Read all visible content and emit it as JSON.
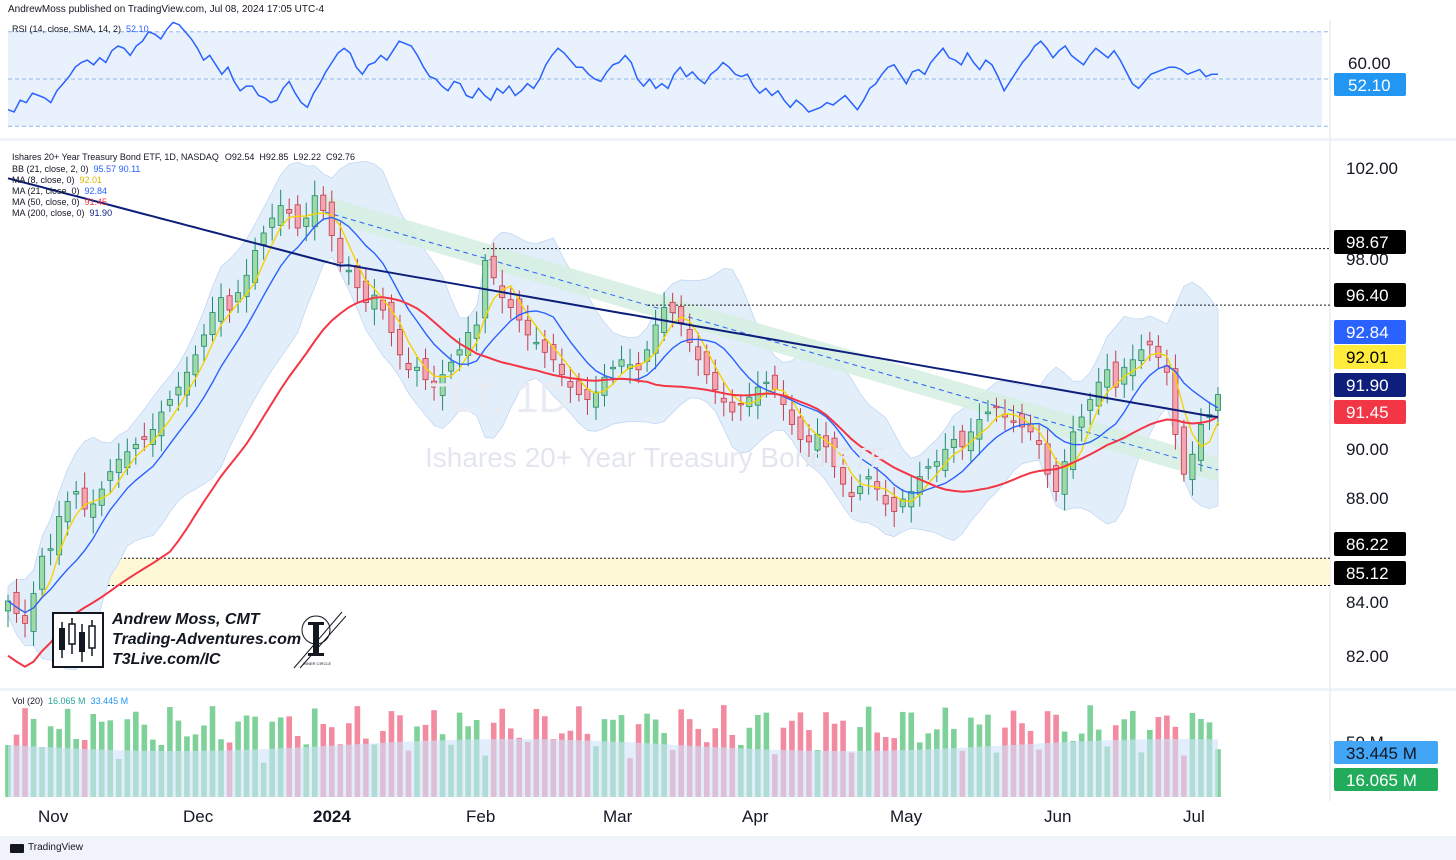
{
  "header": {
    "published_text": "AndrewMoss published on TradingView.com, Jul 08, 2024 17:05 UTC-4"
  },
  "footer": {
    "brand": "TradingView"
  },
  "rsi": {
    "legend": "RSI (14, close, SMA, 14, 2)",
    "legend_value": "52.10",
    "level_label": "60.00",
    "current_tag": "52.10",
    "current": 52.1,
    "upper_band": 70,
    "lower_band": 30,
    "scale": [
      25,
      75
    ],
    "values": [
      37,
      36,
      41,
      40,
      44,
      43,
      42,
      40,
      45,
      48,
      51,
      55,
      57,
      58,
      56,
      59,
      57,
      62,
      64,
      63,
      60,
      64,
      66,
      70,
      69,
      67,
      71,
      74,
      73,
      70,
      67,
      63,
      58,
      60,
      56,
      52,
      55,
      49,
      45,
      47,
      47,
      43,
      42,
      40,
      41,
      46,
      49,
      44,
      40,
      38,
      44,
      48,
      53,
      57,
      61,
      63,
      61,
      55,
      52,
      56,
      57,
      60,
      58,
      62,
      66,
      65,
      64,
      60,
      55,
      51,
      50,
      47,
      45,
      49,
      48,
      43,
      42,
      46,
      43,
      41,
      46,
      44,
      47,
      43,
      45,
      48,
      46,
      50,
      56,
      60,
      63,
      61,
      58,
      55,
      55,
      52,
      50,
      49,
      53,
      56,
      57,
      60,
      57,
      50,
      47,
      50,
      46,
      48,
      46,
      52,
      55,
      51,
      53,
      50,
      48,
      52,
      54,
      57,
      55,
      52,
      51,
      52,
      47,
      44,
      46,
      43,
      45,
      41,
      38,
      41,
      39,
      36,
      37,
      38,
      40,
      39,
      41,
      43,
      40,
      37,
      41,
      46,
      48,
      52,
      55,
      56,
      52,
      48,
      53,
      54,
      52,
      57,
      60,
      63,
      59,
      58,
      56,
      61,
      57,
      54,
      58,
      56,
      51,
      45,
      49,
      53,
      57,
      60,
      64,
      66,
      63,
      59,
      62,
      64,
      60,
      58,
      56,
      60,
      63,
      61,
      59,
      62,
      58,
      53,
      48,
      46,
      49,
      52,
      53,
      54,
      55,
      55,
      54,
      52,
      53,
      54,
      51,
      52,
      52
    ],
    "tail": [
      62,
      63,
      61,
      57,
      55,
      58,
      52,
      48,
      46,
      49,
      51,
      53,
      52
    ]
  },
  "price_panel": {
    "legend_title": "Ishares 20+ Year Treasury Bond ETF, 1D, NASDAQ",
    "ohlc": {
      "o": "O92.54",
      "h": "H92.85",
      "l": "L92.22",
      "c": "C92.76"
    },
    "indicators": [
      {
        "label": "BB (21, close, 2, 0)",
        "values": "95.57  90.11",
        "color": "#2962ff"
      },
      {
        "label": "MA (8, close, 0)",
        "values": "92.01",
        "color": "#f5d300"
      },
      {
        "label": "MA (21, close, 0)",
        "values": "92.84",
        "color": "#2962ff"
      },
      {
        "label": "MA (50, close, 0)",
        "values": "91.45",
        "color": "#f23645"
      },
      {
        "label": "MA (200, close, 0)",
        "values": "91.90",
        "color": "#0d1f7a"
      }
    ],
    "watermark_symbol": "TLT, 1D",
    "watermark_name": "Ishares 20+ Year Treasury Bond ETF",
    "y_ticks": [
      "102.00",
      "98.00",
      "90.00",
      "88.00",
      "84.00",
      "82.00"
    ],
    "y_tick_values": [
      102,
      98,
      90,
      88,
      84,
      82
    ],
    "price_tags": [
      {
        "label": "98.67",
        "value": 98.67,
        "bg": "#000000",
        "fg": "#ffffff"
      },
      {
        "label": "96.40",
        "value": 96.4,
        "bg": "#000000",
        "fg": "#ffffff"
      },
      {
        "label": "92.84",
        "value": 92.84,
        "bg": "#2962ff",
        "fg": "#ffffff"
      },
      {
        "label": "92.01",
        "value": 92.01,
        "bg": "#ffeb3b",
        "fg": "#000000"
      },
      {
        "label": "91.90",
        "value": 91.9,
        "bg": "#0d1f7a",
        "fg": "#ffffff"
      },
      {
        "label": "91.45",
        "value": 91.45,
        "bg": "#f23645",
        "fg": "#ffffff"
      },
      {
        "label": "86.22",
        "value": 86.22,
        "bg": "#000000",
        "fg": "#ffffff"
      },
      {
        "label": "85.12",
        "value": 85.12,
        "bg": "#000000",
        "fg": "#ffffff"
      }
    ],
    "support_zone": [
      85.12,
      86.22
    ],
    "colors": {
      "up": "#26a69a",
      "up_fill": "#9fd9a5",
      "down": "#ef5350",
      "down_fill": "#f4a6b0",
      "bb_fill": "#e3eefb",
      "channel_fill": "#d5efe0"
    }
  },
  "author": {
    "line1": "Andrew Moss, CMT",
    "line2": "Trading-Adventures.com",
    "line3": "T3Live.com/IC",
    "seal_text": "INNER CIRCLE"
  },
  "volume": {
    "legend": "Vol (20)",
    "legend_v1": "16.065 M",
    "legend_v2": "33.445 M",
    "axis_label": "50 M",
    "tag_ma": "33.445 M",
    "tag_vol": "16.065 M"
  },
  "x_axis": {
    "labels": [
      "Nov",
      "Dec",
      "2024",
      "Feb",
      "Mar",
      "Apr",
      "May",
      "Jun",
      "Jul"
    ]
  },
  "chart_data": {
    "type": "candlestick",
    "title": "Ishares 20+ Year Treasury Bond ETF, 1D, NASDAQ",
    "x_labels": [
      "Nov",
      "Dec",
      "2024",
      "Feb",
      "Mar",
      "Apr",
      "May",
      "Jun",
      "Jul"
    ],
    "y_range": [
      81,
      103
    ],
    "close_path": [
      84.5,
      84.0,
      83.6,
      84.8,
      86.3,
      86.6,
      87.9,
      88.5,
      88.9,
      88.2,
      88.4,
      89.0,
      89.7,
      90.2,
      90.5,
      90.8,
      91.0,
      91.4,
      92.1,
      92.6,
      93.1,
      93.7,
      94.4,
      95.2,
      96.1,
      96.7,
      96.2,
      96.9,
      97.6,
      98.6,
      99.3,
      99.9,
      100.4,
      100.1,
      99.5,
      99.9,
      100.8,
      100.2,
      99.2,
      98.1,
      97.8,
      97.1,
      96.5,
      96.8,
      96.2,
      95.3,
      94.4,
      93.8,
      93.9,
      93.4,
      93.1,
      93.6,
      94.1,
      94.6,
      95.3,
      95.6,
      98.2,
      97.5,
      96.7,
      96.3,
      95.8,
      95.2,
      94.9,
      94.5,
      94.2,
      93.6,
      93.1,
      92.8,
      92.6,
      92.9,
      93.5,
      93.9,
      94.2,
      94.0,
      93.8,
      94.6,
      95.6,
      96.3,
      96.1,
      95.7,
      94.9,
      94.2,
      93.6,
      93.0,
      92.5,
      92.1,
      92.4,
      92.7,
      93.1,
      93.3,
      93.0,
      92.4,
      91.6,
      91.0,
      90.9,
      91.2,
      90.7,
      89.9,
      89.2,
      88.7,
      89.1,
      89.5,
      89.0,
      88.4,
      88.1,
      88.6,
      88.9,
      89.5,
      89.9,
      90.1,
      90.6,
      91.0,
      90.7,
      91.3,
      91.8,
      92.1,
      92.3,
      91.9,
      91.7,
      91.5,
      91.3,
      90.8,
      89.6,
      88.9,
      90.1,
      91.3,
      91.9,
      92.6,
      93.3,
      93.8,
      93.1,
      93.9,
      94.2,
      94.6,
      94.8,
      94.3,
      93.7,
      91.2,
      89.6,
      90.4,
      91.6,
      92.0,
      92.8
    ],
    "moving_averages": [
      {
        "name": "MA (8, close, 0)",
        "last": 92.01
      },
      {
        "name": "MA (21, close, 0)",
        "last": 92.84
      },
      {
        "name": "MA (50, close, 0)",
        "last": 91.45
      },
      {
        "name": "MA (200, close, 0)",
        "last": 91.9
      }
    ],
    "bollinger_last": [
      95.57,
      90.11
    ],
    "volume_last": 16.065,
    "volume_ma_last": 33.445,
    "volume_units": "M"
  }
}
